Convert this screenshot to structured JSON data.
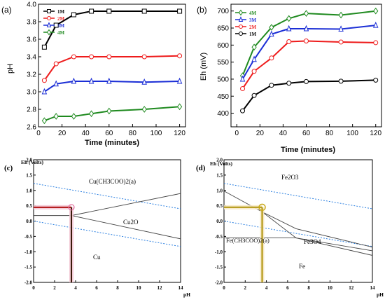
{
  "chart_data": [
    {
      "panel": "(a)",
      "type": "line",
      "xlabel": "Time (minutes)",
      "ylabel": "pH",
      "xlim": [
        0,
        125
      ],
      "ylim": [
        2.6,
        4.0
      ],
      "xticks": [
        "0",
        "20",
        "40",
        "60",
        "80",
        "100",
        "120"
      ],
      "yticks": [
        "2.6",
        "2.8",
        "3.0",
        "3.2",
        "3.4",
        "3.6",
        "3.8",
        "4.0"
      ],
      "x": [
        5,
        15,
        30,
        45,
        60,
        90,
        120
      ],
      "legend_position": "top-left",
      "series": [
        {
          "name": "1M",
          "color": "#000000",
          "marker": "square",
          "values": [
            3.51,
            3.76,
            3.88,
            3.92,
            3.92,
            3.92,
            3.92
          ]
        },
        {
          "name": "2M",
          "color": "#ee1c1c",
          "marker": "circle",
          "values": [
            3.13,
            3.32,
            3.4,
            3.4,
            3.4,
            3.4,
            3.41
          ]
        },
        {
          "name": "3M",
          "color": "#1c2fd6",
          "marker": "triangle",
          "values": [
            3.0,
            3.09,
            3.12,
            3.12,
            3.12,
            3.11,
            3.12
          ]
        },
        {
          "name": "4M",
          "color": "#1f8a1f",
          "marker": "diamond",
          "values": [
            2.67,
            2.72,
            2.72,
            2.75,
            2.78,
            2.8,
            2.83
          ]
        }
      ]
    },
    {
      "panel": "(b)",
      "type": "line",
      "xlabel": "Time (minutes)",
      "ylabel": "Eh (mV)",
      "xlim": [
        -5,
        125
      ],
      "ylim": [
        360,
        720
      ],
      "xticks": [
        "0",
        "20",
        "40",
        "60",
        "80",
        "100",
        "120"
      ],
      "yticks": [
        "400",
        "450",
        "500",
        "550",
        "600",
        "650",
        "700"
      ],
      "x": [
        5,
        15,
        30,
        45,
        60,
        90,
        120
      ],
      "legend_position": "top-left",
      "series": [
        {
          "name": "4M",
          "color": "#1f8a1f",
          "marker": "diamond",
          "values": [
            510,
            594,
            652,
            678,
            693,
            688,
            700
          ]
        },
        {
          "name": "3M",
          "color": "#1c2fd6",
          "marker": "triangle",
          "values": [
            500,
            558,
            632,
            648,
            648,
            647,
            658
          ]
        },
        {
          "name": "2M",
          "color": "#ee1c1c",
          "marker": "circle",
          "values": [
            472,
            523,
            562,
            610,
            612,
            609,
            607
          ]
        },
        {
          "name": "1M",
          "color": "#000000",
          "marker": "circle-open",
          "values": [
            407,
            452,
            482,
            488,
            493,
            494,
            497
          ]
        }
      ]
    },
    {
      "panel": "(c)",
      "type": "line",
      "ylabel": "Eh (Volts)",
      "xlabel": "pH",
      "xlim": [
        0,
        14
      ],
      "ylim": [
        -2.0,
        2.0
      ],
      "xticks": [
        "0",
        "2",
        "4",
        "6",
        "8",
        "10",
        "12",
        "14"
      ],
      "yticks": [
        "2.0",
        "1.5",
        "1.0",
        "0.5",
        "0.0",
        "-0.5",
        "-1.0",
        "-1.5",
        "-2.0"
      ],
      "regions": [
        "Cu(CH3COO)2(a)",
        "Cu2O",
        "Cu"
      ],
      "boundaries": [
        {
          "points": [
            [
              0,
              0.18
            ],
            [
              3.6,
              0.18
            ]
          ]
        },
        {
          "points": [
            [
              3.6,
              0.18
            ],
            [
              14,
              0.9
            ]
          ]
        },
        {
          "points": [
            [
              3.6,
              0.18
            ],
            [
              14,
              -0.58
            ]
          ]
        },
        {
          "points": [
            [
              3.6,
              -2.0
            ],
            [
              3.6,
              0.18
            ]
          ]
        }
      ],
      "water_lines": [
        {
          "points": [
            [
              0,
              1.23
            ],
            [
              14,
              0.4
            ]
          ]
        },
        {
          "points": [
            [
              0,
              0.0
            ],
            [
              14,
              -0.83
            ]
          ]
        }
      ],
      "marker": {
        "ph": 3.6,
        "eh": 0.45
      }
    },
    {
      "panel": "(d)",
      "type": "line",
      "ylabel": "Eh (Volts)",
      "xlabel": "pH",
      "xlim": [
        0,
        14
      ],
      "ylim": [
        -2.0,
        2.0
      ],
      "xticks": [
        "0",
        "2",
        "4",
        "6",
        "8",
        "10",
        "12",
        "14"
      ],
      "yticks": [
        "2.0",
        "1.5",
        "1.0",
        "0.5",
        "0.0",
        "-0.5",
        "-1.0",
        "-1.5",
        "-2.0"
      ],
      "regions": [
        "Fe2O3",
        "Fe(CH3COO)2(a)",
        "Fe3O4",
        "Fe"
      ],
      "boundaries": [
        {
          "points": [
            [
              0,
              0.98
            ],
            [
              3.6,
              0.3
            ],
            [
              6.8,
              -0.55
            ],
            [
              14,
              -0.97
            ]
          ]
        },
        {
          "points": [
            [
              0,
              -0.55
            ],
            [
              6.8,
              -0.55
            ]
          ]
        },
        {
          "points": [
            [
              3.6,
              0.3
            ],
            [
              6.8,
              -0.25
            ],
            [
              14,
              -0.85
            ]
          ]
        },
        {
          "points": [
            [
              6.8,
              -0.55
            ],
            [
              14,
              -1.12
            ]
          ]
        }
      ],
      "water_lines": [
        {
          "points": [
            [
              0,
              1.23
            ],
            [
              14,
              0.4
            ]
          ]
        },
        {
          "points": [
            [
              0,
              0.0
            ],
            [
              14,
              -0.83
            ]
          ]
        }
      ],
      "marker": {
        "ph": 3.6,
        "eh": 0.45
      }
    }
  ]
}
